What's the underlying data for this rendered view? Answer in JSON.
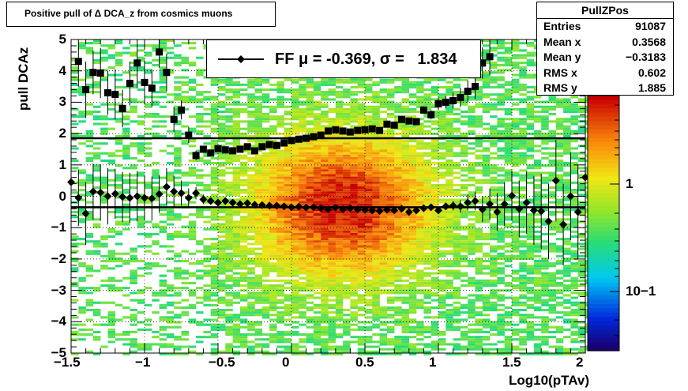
{
  "title": "Positive pull of Δ DCA_z from cosmics muons",
  "stats": {
    "name": "PullZPos",
    "rows": [
      {
        "label": "Entries",
        "value": "91087"
      },
      {
        "label": "Mean x",
        "value": "0.3568"
      },
      {
        "label": "Mean y",
        "value": "−0.3183"
      },
      {
        "label": "RMS x",
        "value": "0.602"
      },
      {
        "label": "RMS y",
        "value": "1.885"
      }
    ]
  },
  "legend": {
    "entry": "FF μ = -0.369, σ =   1.834"
  },
  "axes": {
    "xlabel": "Log10(pTAv)",
    "ylabel": "pull DCAz",
    "xlim": [
      -1.5,
      2
    ],
    "ylim": [
      -5,
      5
    ],
    "xticks": [
      "−1.5",
      "−1",
      "−0.5",
      "0",
      "0.5",
      "1",
      "1.5",
      "2"
    ],
    "yticks": [
      "−5",
      "−4",
      "−3",
      "−2",
      "−1",
      "0",
      "1",
      "2",
      "3",
      "4",
      "5"
    ],
    "colorbar_ticks": [
      "1",
      "10−1"
    ],
    "grid": true
  },
  "chart_data": {
    "type": "heatmap",
    "fit_lines_y": [
      1.85,
      -0.35
    ],
    "series": [
      {
        "x": [
          -1.45,
          -1.4,
          -1.35,
          -1.3,
          -1.25,
          -1.2,
          -1.15,
          -1.1,
          -1.05,
          -1.0,
          -0.95,
          -0.9,
          -0.85,
          -0.8,
          -0.75,
          -0.7,
          -0.65,
          -0.6,
          -0.55,
          -0.5,
          -0.45,
          -0.4,
          -0.35,
          -0.3,
          -0.25,
          -0.2,
          -0.15,
          -0.1,
          -0.05,
          0.0,
          0.05,
          0.1,
          0.15,
          0.2,
          0.25,
          0.3,
          0.35,
          0.4,
          0.45,
          0.5,
          0.55,
          0.6,
          0.65,
          0.7,
          0.75,
          0.8,
          0.85,
          0.9,
          0.95,
          1.0,
          1.05,
          1.1,
          1.15,
          1.2,
          1.25,
          1.3,
          1.35,
          1.4,
          1.45
        ],
        "y": [
          4.3,
          3.4,
          3.95,
          3.93,
          3.3,
          3.25,
          2.8,
          3.6,
          4.25,
          3.63,
          3.45,
          4.6,
          3.95,
          2.45,
          2.75,
          1.95,
          1.3,
          1.5,
          1.38,
          1.52,
          1.48,
          1.45,
          1.5,
          1.58,
          1.45,
          1.58,
          1.65,
          1.62,
          1.7,
          1.78,
          1.82,
          1.85,
          1.9,
          1.95,
          2.08,
          2.12,
          2.08,
          2.05,
          2.1,
          2.12,
          2.15,
          2.1,
          2.3,
          2.27,
          2.45,
          2.4,
          2.38,
          2.75,
          2.6,
          2.95,
          3.0,
          3.05,
          3.15,
          3.35,
          3.5,
          4.25,
          4.45,
          null,
          null
        ],
        "yerr": [
          0.8,
          0.9,
          0.7,
          0.8,
          0.7,
          0.8,
          0.6,
          0.7,
          0.8,
          0.7,
          0.6,
          0.5,
          0.6,
          0.4,
          0.3,
          0.25,
          0.15,
          0.1,
          0.08,
          0.06,
          0.05,
          0.05,
          0.04,
          0.04,
          0.04,
          0.04,
          0.04,
          0.04,
          0.04,
          0.04,
          0.04,
          0.04,
          0.04,
          0.04,
          0.04,
          0.04,
          0.04,
          0.04,
          0.05,
          0.05,
          0.05,
          0.06,
          0.06,
          0.07,
          0.08,
          0.09,
          0.1,
          0.12,
          0.15,
          0.2,
          0.2,
          0.25,
          0.3,
          0.35,
          0.4,
          0.5,
          0.6,
          null,
          null
        ]
      },
      {
        "x": [
          -1.5,
          -1.45,
          -1.4,
          -1.35,
          -1.3,
          -1.25,
          -1.2,
          -1.15,
          -1.1,
          -1.05,
          -1.0,
          -0.95,
          -0.9,
          -0.85,
          -0.8,
          -0.75,
          -0.7,
          -0.65,
          -0.6,
          -0.55,
          -0.5,
          -0.45,
          -0.4,
          -0.35,
          -0.3,
          -0.25,
          -0.2,
          -0.15,
          -0.1,
          -0.05,
          0.0,
          0.05,
          0.1,
          0.15,
          0.2,
          0.25,
          0.3,
          0.35,
          0.4,
          0.45,
          0.5,
          0.55,
          0.6,
          0.65,
          0.7,
          0.75,
          0.8,
          0.85,
          0.9,
          0.95,
          1.0,
          1.05,
          1.1,
          1.15,
          1.2,
          1.25,
          1.3,
          1.35,
          1.4,
          1.45,
          1.5,
          1.55,
          1.6,
          1.65,
          1.7,
          1.75,
          1.8,
          1.85,
          1.9,
          1.95,
          2.0
        ],
        "y": [
          0.45,
          -0.05,
          -0.55,
          0.15,
          0.12,
          0.0,
          0.08,
          -0.02,
          -0.05,
          0.0,
          -0.05,
          -0.07,
          0.07,
          0.3,
          0.15,
          0.1,
          -0.05,
          0.1,
          -0.1,
          -0.15,
          -0.2,
          -0.15,
          -0.2,
          -0.25,
          -0.22,
          -0.27,
          -0.28,
          -0.3,
          -0.3,
          -0.32,
          -0.35,
          -0.33,
          -0.36,
          -0.35,
          -0.38,
          -0.42,
          -0.36,
          -0.42,
          -0.38,
          -0.42,
          -0.43,
          -0.45,
          -0.47,
          -0.43,
          -0.45,
          -0.4,
          -0.5,
          -0.45,
          -0.38,
          -0.35,
          -0.45,
          -0.32,
          -0.3,
          -0.32,
          -0.2,
          -0.15,
          -0.42,
          -0.25,
          -0.5,
          -0.25,
          0.02,
          -0.4,
          -0.2,
          -0.45,
          -0.48,
          -0.8,
          0.5,
          -0.9,
          0.0,
          -0.5,
          0.6
        ],
        "yerr": [
          1.2,
          0.9,
          1.0,
          0.9,
          0.9,
          0.9,
          0.8,
          0.8,
          0.8,
          0.8,
          0.7,
          0.7,
          0.6,
          0.6,
          0.5,
          0.4,
          0.3,
          0.2,
          0.15,
          0.1,
          0.08,
          0.06,
          0.05,
          0.05,
          0.04,
          0.04,
          0.04,
          0.04,
          0.04,
          0.04,
          0.04,
          0.04,
          0.04,
          0.04,
          0.04,
          0.04,
          0.04,
          0.04,
          0.04,
          0.04,
          0.04,
          0.04,
          0.05,
          0.05,
          0.05,
          0.06,
          0.06,
          0.07,
          0.08,
          0.09,
          0.1,
          0.12,
          0.15,
          0.2,
          0.25,
          0.3,
          0.4,
          0.5,
          0.6,
          0.7,
          0.8,
          0.9,
          1.0,
          1.1,
          1.2,
          1.2,
          1.3,
          1.3,
          1.4,
          1.5,
          1.6
        ]
      }
    ]
  }
}
